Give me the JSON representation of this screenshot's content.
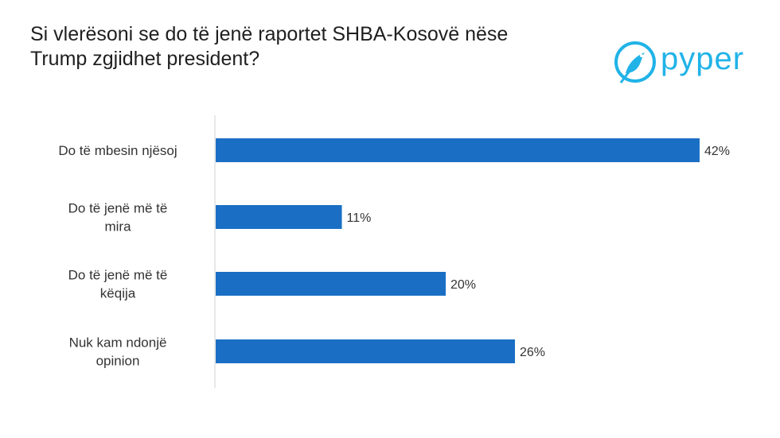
{
  "title_lines": [
    "Si vlerësoni se do të jenë raportet SHBA-Kosovë nëse",
    "Trump zgjidhet president?"
  ],
  "logo": {
    "text": "pyper",
    "color": "#21b3e8",
    "icon": "bird-icon"
  },
  "chart_data": {
    "type": "bar",
    "orientation": "horizontal",
    "title": "Si vlerësoni se do të jenë raportet SHBA-Kosovë nëse Trump zgjidhet president?",
    "categories": [
      [
        "Do të mbesin njësoj"
      ],
      [
        "Do të jenë më të",
        "mira"
      ],
      [
        "Do të jenë më të",
        "këqija"
      ],
      [
        "Nuk kam ndonjë",
        "opinion"
      ]
    ],
    "values": [
      42,
      11,
      20,
      26
    ],
    "value_labels": [
      "42%",
      "11%",
      "20%",
      "26%"
    ],
    "unit": "%",
    "xlim": [
      0,
      42
    ],
    "bar_color": "#1a6fc4",
    "grid": false
  }
}
